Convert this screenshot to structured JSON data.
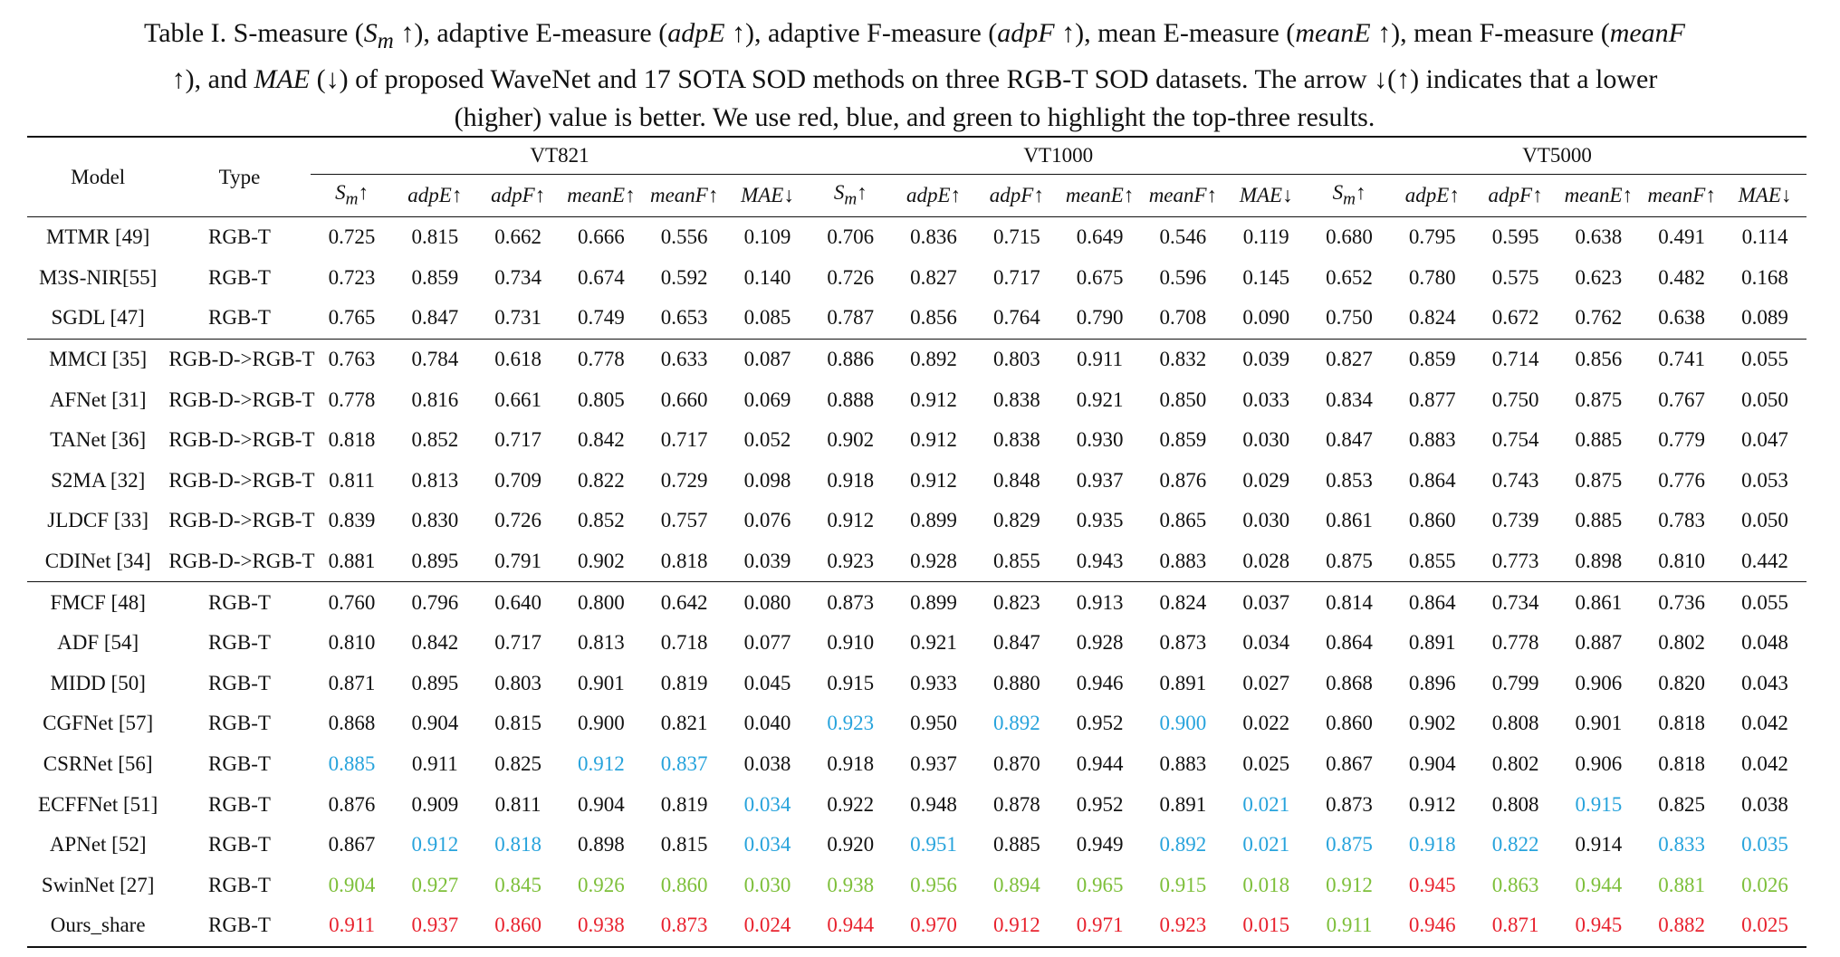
{
  "caption": {
    "line1_a": "Table I. S-measure (",
    "line1_sm": "S",
    "line1_sm_sub": "m",
    "line1_b": " ↑), adaptive E-measure (",
    "line1_adpe": "adpE",
    "line1_c": " ↑), adaptive F-measure (",
    "line1_adpf": "adpF",
    "line1_d": " ↑), mean E-measure (",
    "line1_meane": "meanE",
    "line1_e": " ↑), mean F-measure (",
    "line1_meanf": "meanF",
    "line2_a": "↑), and ",
    "line2_mae": "MAE",
    "line2_b": " (↓) of proposed WaveNet and 17 SOTA SOD methods on three RGB-T SOD datasets. The arrow ↓(↑) indicates that a lower",
    "line3": "(higher) value is better. We use red, blue, and green to highlight the top-three results."
  },
  "header": {
    "model": "Model",
    "type": "Type",
    "datasets": [
      "VT821",
      "VT1000",
      "VT5000"
    ],
    "metrics": [
      "Sm↑",
      "adpE↑",
      "adpF↑",
      "meanE↑",
      "meanF↑",
      "MAE↓"
    ]
  },
  "highlight_colors": {
    "red": "#e8222e",
    "blue": "#27a3dc",
    "green": "#7dbf3a"
  },
  "rows": [
    {
      "model": "MTMR [49]",
      "type": "RGB-T",
      "v": [
        "0.725",
        "0.815",
        "0.662",
        "0.666",
        "0.556",
        "0.109",
        "0.706",
        "0.836",
        "0.715",
        "0.649",
        "0.546",
        "0.119",
        "0.680",
        "0.795",
        "0.595",
        "0.638",
        "0.491",
        "0.114"
      ],
      "c": "000000000000000000"
    },
    {
      "model": "M3S-NIR[55]",
      "type": "RGB-T",
      "v": [
        "0.723",
        "0.859",
        "0.734",
        "0.674",
        "0.592",
        "0.140",
        "0.726",
        "0.827",
        "0.717",
        "0.675",
        "0.596",
        "0.145",
        "0.652",
        "0.780",
        "0.575",
        "0.623",
        "0.482",
        "0.168"
      ],
      "c": "000000000000000000"
    },
    {
      "model": "SGDL [47]",
      "type": "RGB-T",
      "v": [
        "0.765",
        "0.847",
        "0.731",
        "0.749",
        "0.653",
        "0.085",
        "0.787",
        "0.856",
        "0.764",
        "0.790",
        "0.708",
        "0.090",
        "0.750",
        "0.824",
        "0.672",
        "0.762",
        "0.638",
        "0.089"
      ],
      "c": "000000000000000000"
    },
    {
      "model": "MMCI [35]",
      "type": "RGB-D->RGB-T",
      "v": [
        "0.763",
        "0.784",
        "0.618",
        "0.778",
        "0.633",
        "0.087",
        "0.886",
        "0.892",
        "0.803",
        "0.911",
        "0.832",
        "0.039",
        "0.827",
        "0.859",
        "0.714",
        "0.856",
        "0.741",
        "0.055"
      ],
      "c": "000000000000000000",
      "group_start": true
    },
    {
      "model": "AFNet [31]",
      "type": "RGB-D->RGB-T",
      "v": [
        "0.778",
        "0.816",
        "0.661",
        "0.805",
        "0.660",
        "0.069",
        "0.888",
        "0.912",
        "0.838",
        "0.921",
        "0.850",
        "0.033",
        "0.834",
        "0.877",
        "0.750",
        "0.875",
        "0.767",
        "0.050"
      ],
      "c": "000000000000000000"
    },
    {
      "model": "TANet [36]",
      "type": "RGB-D->RGB-T",
      "v": [
        "0.818",
        "0.852",
        "0.717",
        "0.842",
        "0.717",
        "0.052",
        "0.902",
        "0.912",
        "0.838",
        "0.930",
        "0.859",
        "0.030",
        "0.847",
        "0.883",
        "0.754",
        "0.885",
        "0.779",
        "0.047"
      ],
      "c": "000000000000000000"
    },
    {
      "model": "S2MA [32]",
      "type": "RGB-D->RGB-T",
      "v": [
        "0.811",
        "0.813",
        "0.709",
        "0.822",
        "0.729",
        "0.098",
        "0.918",
        "0.912",
        "0.848",
        "0.937",
        "0.876",
        "0.029",
        "0.853",
        "0.864",
        "0.743",
        "0.875",
        "0.776",
        "0.053"
      ],
      "c": "000000000000000000"
    },
    {
      "model": "JLDCF [33]",
      "type": "RGB-D->RGB-T",
      "v": [
        "0.839",
        "0.830",
        "0.726",
        "0.852",
        "0.757",
        "0.076",
        "0.912",
        "0.899",
        "0.829",
        "0.935",
        "0.865",
        "0.030",
        "0.861",
        "0.860",
        "0.739",
        "0.885",
        "0.783",
        "0.050"
      ],
      "c": "000000000000000000"
    },
    {
      "model": "CDINet [34]",
      "type": "RGB-D->RGB-T",
      "v": [
        "0.881",
        "0.895",
        "0.791",
        "0.902",
        "0.818",
        "0.039",
        "0.923",
        "0.928",
        "0.855",
        "0.943",
        "0.883",
        "0.028",
        "0.875",
        "0.855",
        "0.773",
        "0.898",
        "0.810",
        "0.442"
      ],
      "c": "000000000000000000"
    },
    {
      "model": "FMCF [48]",
      "type": "RGB-T",
      "v": [
        "0.760",
        "0.796",
        "0.640",
        "0.800",
        "0.642",
        "0.080",
        "0.873",
        "0.899",
        "0.823",
        "0.913",
        "0.824",
        "0.037",
        "0.814",
        "0.864",
        "0.734",
        "0.861",
        "0.736",
        "0.055"
      ],
      "c": "000000000000000000",
      "group_start": true
    },
    {
      "model": "ADF [54]",
      "type": "RGB-T",
      "v": [
        "0.810",
        "0.842",
        "0.717",
        "0.813",
        "0.718",
        "0.077",
        "0.910",
        "0.921",
        "0.847",
        "0.928",
        "0.873",
        "0.034",
        "0.864",
        "0.891",
        "0.778",
        "0.887",
        "0.802",
        "0.048"
      ],
      "c": "000000000000000000"
    },
    {
      "model": "MIDD [50]",
      "type": "RGB-T",
      "v": [
        "0.871",
        "0.895",
        "0.803",
        "0.901",
        "0.819",
        "0.045",
        "0.915",
        "0.933",
        "0.880",
        "0.946",
        "0.891",
        "0.027",
        "0.868",
        "0.896",
        "0.799",
        "0.906",
        "0.820",
        "0.043"
      ],
      "c": "000000000000000000"
    },
    {
      "model": "CGFNet [57]",
      "type": "RGB-T",
      "v": [
        "0.868",
        "0.904",
        "0.815",
        "0.900",
        "0.821",
        "0.040",
        "0.923",
        "0.950",
        "0.892",
        "0.952",
        "0.900",
        "0.022",
        "0.860",
        "0.902",
        "0.808",
        "0.901",
        "0.818",
        "0.042"
      ],
      "c": "000000b0b0b0000000"
    },
    {
      "model": "CSRNet [56]",
      "type": "RGB-T",
      "v": [
        "0.885",
        "0.911",
        "0.825",
        "0.912",
        "0.837",
        "0.038",
        "0.918",
        "0.937",
        "0.870",
        "0.944",
        "0.883",
        "0.025",
        "0.867",
        "0.904",
        "0.802",
        "0.906",
        "0.818",
        "0.042"
      ],
      "c": "b00bb0000000000000"
    },
    {
      "model": "ECFFNet [51]",
      "type": "RGB-T",
      "v": [
        "0.876",
        "0.909",
        "0.811",
        "0.904",
        "0.819",
        "0.034",
        "0.922",
        "0.948",
        "0.878",
        "0.952",
        "0.891",
        "0.021",
        "0.873",
        "0.912",
        "0.808",
        "0.915",
        "0.825",
        "0.038"
      ],
      "c": "00000b00000b000b00"
    },
    {
      "model": "APNet [52]",
      "type": "RGB-T",
      "v": [
        "0.867",
        "0.912",
        "0.818",
        "0.898",
        "0.815",
        "0.034",
        "0.920",
        "0.951",
        "0.885",
        "0.949",
        "0.892",
        "0.021",
        "0.875",
        "0.918",
        "0.822",
        "0.914",
        "0.833",
        "0.035"
      ],
      "c": "0bb00b0b00bbbbb0bb"
    },
    {
      "model": "SwinNet [27]",
      "type": "RGB-T",
      "v": [
        "0.904",
        "0.927",
        "0.845",
        "0.926",
        "0.860",
        "0.030",
        "0.938",
        "0.956",
        "0.894",
        "0.965",
        "0.915",
        "0.018",
        "0.912",
        "0.945",
        "0.863",
        "0.944",
        "0.881",
        "0.026"
      ],
      "c": "gggggggggggggrgggg"
    },
    {
      "model": "Ours_share",
      "type": "RGB-T",
      "v": [
        "0.911",
        "0.937",
        "0.860",
        "0.938",
        "0.873",
        "0.024",
        "0.944",
        "0.970",
        "0.912",
        "0.971",
        "0.923",
        "0.015",
        "0.911",
        "0.946",
        "0.871",
        "0.945",
        "0.882",
        "0.025"
      ],
      "c": "rrrrrrrrrrrrgrrrrr"
    }
  ]
}
